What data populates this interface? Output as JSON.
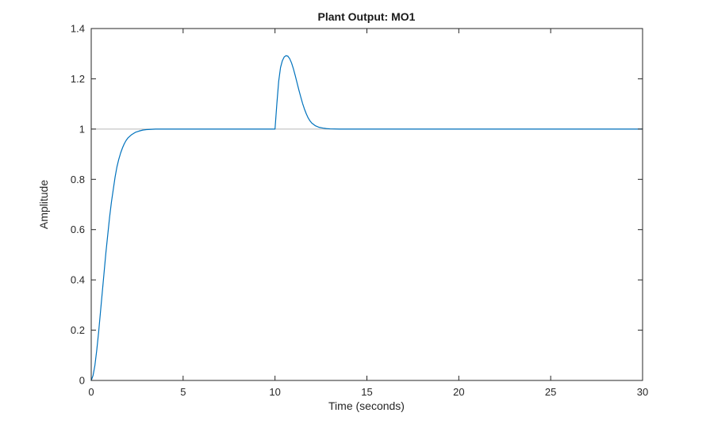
{
  "chart_data": {
    "type": "line",
    "title": "Plant Output: MO1",
    "xlabel": "Time (seconds)",
    "ylabel": "Amplitude",
    "xlim": [
      0,
      30
    ],
    "ylim": [
      0,
      1.4
    ],
    "xticks": [
      0,
      5,
      10,
      15,
      20,
      25,
      30
    ],
    "xtick_labels": [
      "0",
      "5",
      "10",
      "15",
      "20",
      "25",
      "30"
    ],
    "yticks": [
      0,
      0.2,
      0.4,
      0.6,
      0.8,
      1,
      1.2,
      1.4
    ],
    "ytick_labels": [
      "0",
      "0.2",
      "0.4",
      "0.6",
      "0.8",
      "1",
      "1.2",
      "1.4"
    ],
    "grid": false,
    "legend": null,
    "box": true,
    "axis_color": "#262626",
    "background_color": "#ffffff",
    "reference_line": {
      "y": 1,
      "color": "#b8b8b8"
    },
    "series": [
      {
        "name": "MO1",
        "color": "#0072BD",
        "x": [
          0,
          0.1,
          0.2,
          0.3,
          0.4,
          0.5,
          0.6,
          0.7,
          0.8,
          0.9,
          1.0,
          1.1,
          1.2,
          1.3,
          1.4,
          1.5,
          1.6,
          1.7,
          1.8,
          1.9,
          2.0,
          2.2,
          2.4,
          2.6,
          2.8,
          3.0,
          3.5,
          4.0,
          5.0,
          6.0,
          7.0,
          8.0,
          9.0,
          9.9,
          10.0,
          10.05,
          10.1,
          10.2,
          10.3,
          10.4,
          10.5,
          10.6,
          10.7,
          10.8,
          10.9,
          11.0,
          11.1,
          11.2,
          11.3,
          11.4,
          11.5,
          11.6,
          11.7,
          11.8,
          11.9,
          12.0,
          12.2,
          12.4,
          12.6,
          12.8,
          13.0,
          13.5,
          14.0,
          15.0,
          16.0,
          18.0,
          20.0,
          22.0,
          24.0,
          26.0,
          28.0,
          30.0
        ],
        "y": [
          0,
          0.02,
          0.06,
          0.12,
          0.19,
          0.27,
          0.35,
          0.43,
          0.51,
          0.58,
          0.65,
          0.71,
          0.76,
          0.81,
          0.85,
          0.88,
          0.905,
          0.925,
          0.942,
          0.955,
          0.965,
          0.978,
          0.987,
          0.992,
          0.996,
          0.998,
          1.0,
          1.0,
          1.0,
          1.0,
          1.0,
          1.0,
          1.0,
          1.0,
          1.0,
          1.05,
          1.1,
          1.19,
          1.245,
          1.272,
          1.287,
          1.292,
          1.29,
          1.28,
          1.263,
          1.24,
          1.213,
          1.184,
          1.155,
          1.128,
          1.102,
          1.08,
          1.061,
          1.045,
          1.033,
          1.024,
          1.013,
          1.007,
          1.004,
          1.002,
          1.001,
          1.0,
          1.0,
          1.0,
          1.0,
          1.0,
          1.0,
          1.0,
          1.0,
          1.0,
          1.0,
          1.0
        ]
      }
    ]
  }
}
